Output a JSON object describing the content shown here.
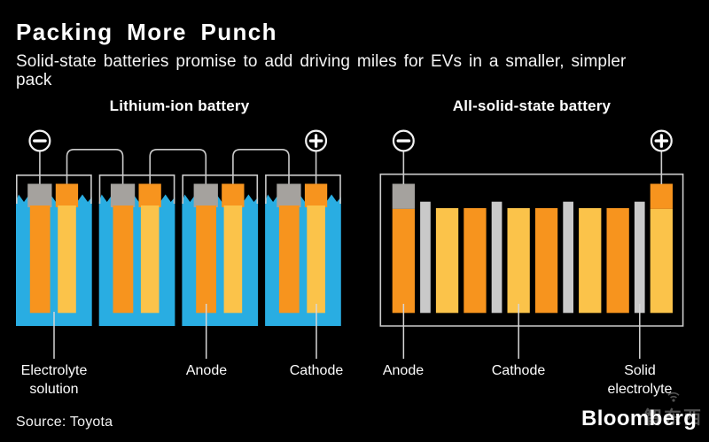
{
  "title": "Packing More Punch",
  "subtitle": {
    "line1": "Solid-state batteries promise to add driving miles for EVs in a smaller, simpler",
    "line2": "pack"
  },
  "colors": {
    "background": "#000000",
    "text": "#ffffff",
    "electrolyte_cyan": "#29ADE2",
    "anode_orange": "#F7941E",
    "cathode_yellow": "#FBC34A",
    "terminal_gray": "#A5A29E",
    "separator_gray": "#C9C9C9",
    "wire_line": "#CBCBCB",
    "terminal_ring": "#F2F2F2"
  },
  "left_diagram": {
    "heading": "Lithium-ion battery",
    "negative_terminal_symbol": "−",
    "positive_terminal_symbol": "+",
    "cell_count": 4,
    "labels": [
      "Electrolyte solution",
      "Anode",
      "Cathode"
    ]
  },
  "right_diagram": {
    "heading": "All-solid-state battery",
    "negative_terminal_symbol": "−",
    "positive_terminal_symbol": "+",
    "bar_sequence": [
      "anode_terminal",
      "separator",
      "cathode",
      "anode",
      "separator",
      "cathode",
      "anode",
      "separator",
      "cathode",
      "anode",
      "separator",
      "cathode_terminal"
    ],
    "labels": [
      "Anode",
      "Cathode",
      "Solid electrolyte"
    ]
  },
  "source": "Source: Toyota",
  "logo": "Bloomberg",
  "watermark": "智东西"
}
